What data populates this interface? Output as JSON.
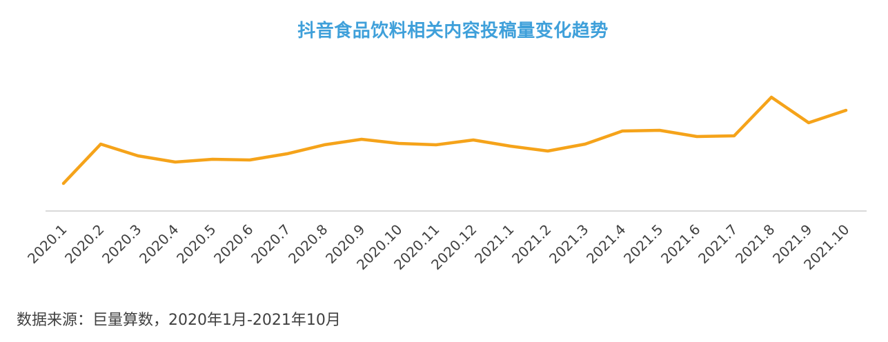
{
  "chart_data": {
    "type": "line",
    "title": "抖音食品饮料相关内容投稿量变化趋势",
    "categories": [
      "2020.1",
      "2020.2",
      "2020.3",
      "2020.4",
      "2020.5",
      "2020.6",
      "2020.7",
      "2020.8",
      "2020.9",
      "2020.10",
      "2020.11",
      "2020.12",
      "2021.1",
      "2021.2",
      "2021.3",
      "2021.4",
      "2021.5",
      "2021.6",
      "2021.7",
      "2021.8",
      "2021.9",
      "2021.10"
    ],
    "series": [
      {
        "values": [
          40,
          97,
          80,
          71,
          75,
          74,
          83,
          96,
          104,
          98,
          96,
          103,
          94,
          87,
          97,
          116,
          117,
          108,
          109,
          165,
          128,
          146
        ]
      }
    ],
    "ylim": [
      0,
      205
    ],
    "grid": false,
    "y_axis_visible": false,
    "line_color": "#f5a31a",
    "axis_color": "#d9d9d9",
    "label_color": "#404040"
  },
  "source_note": "数据来源：巨量算数，2020年1月-2021年10月"
}
